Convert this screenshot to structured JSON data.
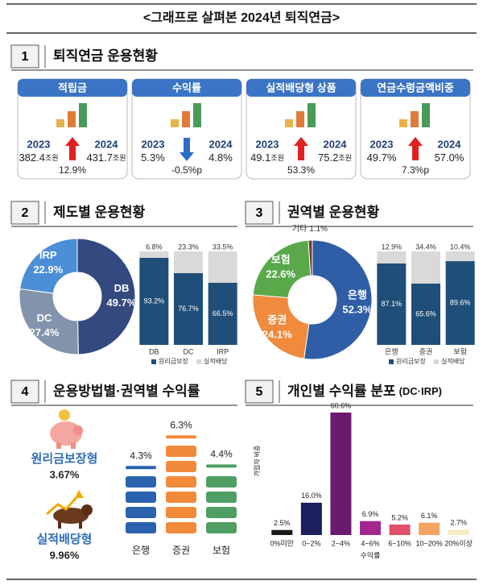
{
  "title": "<그래프로 살펴본 2024년 퇴직연금>",
  "sections": [
    {
      "number": "1",
      "title": "퇴직연금 운용현황"
    },
    {
      "number": "2",
      "title": "제도별 운용현황"
    },
    {
      "number": "3",
      "title": "권역별 운용현황"
    },
    {
      "number": "4",
      "title": "운용방법별·권역별 수익률"
    },
    {
      "number": "5",
      "title": "개인별 수익률 분포",
      "subtitle": "(DC·IRP)"
    }
  ],
  "cards": [
    {
      "title": "적립금",
      "year_from": "2023",
      "year_to": "2024",
      "from": "382.4",
      "from_unit": "조원",
      "to": "431.7",
      "to_unit": "조원",
      "change": "12.9%",
      "arrow": "up"
    },
    {
      "title": "수익률",
      "year_from": "2023",
      "year_to": "2024",
      "from": "5.3%",
      "to": "4.8%",
      "change": "-0.5%p",
      "arrow": "down"
    },
    {
      "title": "실적배당형 상품",
      "year_from": "2023",
      "year_to": "2024",
      "from": "49.1",
      "from_unit": "조원",
      "to": "75.2",
      "to_unit": "조원",
      "change": "53.3%",
      "arrow": "up"
    },
    {
      "title": "연금수령금액비중",
      "year_from": "2023",
      "year_to": "2024",
      "from": "49.7%",
      "to": "57.0%",
      "change": "7.3%p",
      "arrow": "up"
    }
  ],
  "returns_by_method": [
    {
      "label": "원리금보장형",
      "value": "3.67%"
    },
    {
      "label": "실적배당형",
      "value": "9.96%"
    }
  ],
  "chart_data": [
    {
      "type": "donut",
      "categories": [
        "DB",
        "DC",
        "IRP"
      ],
      "values": [
        49.7,
        27.4,
        22.9
      ],
      "value_labels": [
        "49.7%",
        "27.4%",
        "22.9%"
      ],
      "colors": [
        "#34497f",
        "#8294ad",
        "#4a8fd6"
      ]
    },
    {
      "type": "stacked_bar",
      "categories": [
        "DB",
        "DC",
        "IRP"
      ],
      "series": [
        {
          "name": "원리금보장",
          "color": "#1f4e79",
          "values": [
            93.2,
            76.7,
            66.5
          ],
          "value_labels": [
            "93.2%",
            "76.7%",
            "66.5%"
          ]
        },
        {
          "name": "실적배당",
          "color": "#d9d9d9",
          "values": [
            6.8,
            23.3,
            33.5
          ],
          "value_labels": [
            "6.8%",
            "23.3%",
            "33.5%"
          ]
        }
      ]
    },
    {
      "type": "donut",
      "categories": [
        "은행",
        "증권",
        "보험",
        "기타"
      ],
      "values": [
        52.3,
        24.1,
        22.6,
        1.1
      ],
      "value_labels": [
        "52.3%",
        "24.1%",
        "22.6%",
        "1.1%"
      ],
      "colors": [
        "#2f5ea6",
        "#f08a3c",
        "#59a84a",
        "#7a3b2e"
      ]
    },
    {
      "type": "stacked_bar",
      "categories": [
        "은행",
        "증권",
        "보험"
      ],
      "series": [
        {
          "name": "원리금보장",
          "color": "#1f4e79",
          "values": [
            87.1,
            65.6,
            89.6
          ],
          "value_labels": [
            "87.1%",
            "65.6%",
            "89.6%"
          ]
        },
        {
          "name": "실적배당",
          "color": "#d9d9d9",
          "values": [
            12.9,
            34.4,
            10.4
          ],
          "value_labels": [
            "12.9%",
            "34.4%",
            "10.4%"
          ]
        }
      ]
    },
    {
      "type": "block_bar",
      "categories": [
        "은행",
        "증권",
        "보험"
      ],
      "values": [
        4.3,
        6.3,
        4.4
      ],
      "value_labels": [
        "4.3%",
        "6.3%",
        "4.4%"
      ],
      "colors": [
        "#2b62b0",
        "#f28a3c",
        "#4f9e64"
      ]
    },
    {
      "type": "bar",
      "categories": [
        "0%미만",
        "0~2%",
        "2~4%",
        "4~6%",
        "6~10%",
        "10~20%",
        "20%이상"
      ],
      "values": [
        2.5,
        16.0,
        60.6,
        6.9,
        5.2,
        6.1,
        2.7
      ],
      "value_labels": [
        "2.5%",
        "16.0%",
        "60.6%",
        "6.9%",
        "5.2%",
        "6.1%",
        "2.7%"
      ],
      "colors": [
        "#1a1a1a",
        "#1b1f5e",
        "#6a1b6e",
        "#a3288e",
        "#e0506a",
        "#f4a460",
        "#f3edc0"
      ],
      "xlabel": "수익률",
      "ylabel": "가입자 비중"
    }
  ]
}
